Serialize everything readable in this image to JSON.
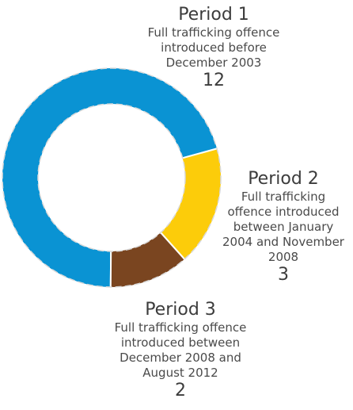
{
  "chart_data": {
    "type": "pie",
    "variant": "donut",
    "categories": [
      "Period 1",
      "Period 2",
      "Period 3"
    ],
    "values": [
      12,
      3,
      2
    ],
    "colors": [
      "#0a93d3",
      "#fccc0a",
      "#7a4520"
    ],
    "segments": [
      {
        "title": "Period 1",
        "description_lines": [
          "Full trafficking offence",
          "introduced before",
          "December 2003"
        ],
        "value": 12,
        "value_label": "12",
        "color": "#0a93d3"
      },
      {
        "title": "Period 2",
        "description_lines": [
          "Full trafficking",
          "offence introduced",
          "between January",
          "2004 and November",
          "2008"
        ],
        "value": 3,
        "value_label": "3",
        "color": "#fccc0a"
      },
      {
        "title": "Period 3",
        "description_lines": [
          "Full trafficking offence",
          "introduced between",
          "December 2008 and",
          "August 2012"
        ],
        "value": 2,
        "value_label": "2",
        "color": "#7a4520"
      }
    ],
    "legend": "none"
  }
}
